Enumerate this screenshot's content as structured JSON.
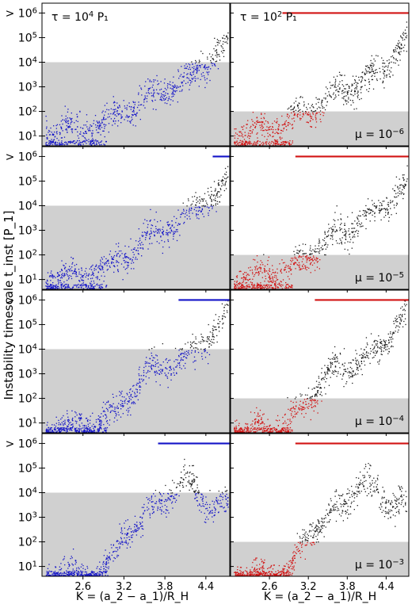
{
  "figure": {
    "ylabel": "Instability timescale t_inst [P_1]",
    "xlabel": "K = (a_2 − a_1)/R_H",
    "column_titles": [
      "τ = 10^4 P_1",
      "τ = 10^2 P_1"
    ],
    "row_labels": [
      "μ = 10^−6",
      "μ = 10^−5",
      "μ = 10^−4",
      "μ = 10^−3"
    ],
    "yticks": [
      "10^1",
      "10^2",
      "10^3",
      "10^4",
      "10^5",
      "> 10^6"
    ],
    "xticks": [
      "2.6",
      "3.2",
      "3.8",
      "4.4"
    ],
    "colors": {
      "blue": "#1414c8",
      "red": "#d21414",
      "black": "#202020",
      "shade": "#d0d0d0"
    }
  },
  "chart_data": [
    {
      "type": "scatter",
      "row": 1,
      "col": 1,
      "mu": "10^-6",
      "tau": "10^4 P1",
      "xlim": [
        2.0,
        4.75
      ],
      "ylim_log10": [
        0.6,
        6.4
      ],
      "shade_below": 10000,
      "mark_threshold": 10000,
      "trend": [
        [
          2.1,
          1.2
        ],
        [
          2.6,
          1.3
        ],
        [
          2.9,
          1.5
        ],
        [
          3.2,
          2.0
        ],
        [
          3.5,
          2.5
        ],
        [
          3.8,
          3.0
        ],
        [
          4.1,
          3.2
        ],
        [
          4.4,
          4.0
        ],
        [
          4.7,
          4.8
        ]
      ],
      "saturated_from": null
    },
    {
      "type": "scatter",
      "row": 1,
      "col": 2,
      "mu": "10^-6",
      "tau": "10^2 P1",
      "xlim": [
        2.0,
        4.75
      ],
      "ylim_log10": [
        0.6,
        6.4
      ],
      "shade_below": 100,
      "mark_threshold": 100,
      "trend": [
        [
          2.1,
          1.2
        ],
        [
          2.6,
          1.3
        ],
        [
          2.9,
          1.6
        ],
        [
          3.2,
          2.0
        ],
        [
          3.5,
          2.5
        ],
        [
          3.8,
          3.0
        ],
        [
          4.1,
          3.2
        ],
        [
          4.4,
          4.0
        ],
        [
          4.7,
          4.8
        ]
      ],
      "saturated_from": 2.8
    },
    {
      "type": "scatter",
      "row": 2,
      "col": 1,
      "mu": "10^-5",
      "tau": "10^4 P1",
      "xlim": [
        2.0,
        4.75
      ],
      "ylim_log10": [
        0.6,
        6.4
      ],
      "shade_below": 10000,
      "mark_threshold": 10000,
      "trend": [
        [
          2.1,
          1.1
        ],
        [
          2.6,
          1.2
        ],
        [
          2.9,
          1.4
        ],
        [
          3.2,
          2.0
        ],
        [
          3.5,
          2.6
        ],
        [
          3.8,
          3.1
        ],
        [
          4.1,
          3.5
        ],
        [
          4.4,
          4.2
        ],
        [
          4.7,
          4.8
        ]
      ],
      "saturated_from": 4.5
    },
    {
      "type": "scatter",
      "row": 2,
      "col": 2,
      "mu": "10^-5",
      "tau": "10^2 P1",
      "xlim": [
        2.0,
        4.75
      ],
      "ylim_log10": [
        0.6,
        6.4
      ],
      "shade_below": 100,
      "mark_threshold": 100,
      "trend": [
        [
          2.1,
          1.1
        ],
        [
          2.6,
          1.2
        ],
        [
          2.9,
          1.4
        ],
        [
          3.2,
          2.0
        ],
        [
          3.5,
          2.6
        ],
        [
          3.8,
          3.1
        ],
        [
          4.1,
          3.5
        ],
        [
          4.4,
          4.2
        ],
        [
          4.7,
          4.8
        ]
      ],
      "saturated_from": 3.0
    },
    {
      "type": "scatter",
      "row": 3,
      "col": 1,
      "mu": "10^-4",
      "tau": "10^4 P1",
      "xlim": [
        2.0,
        4.75
      ],
      "ylim_log10": [
        0.6,
        6.4
      ],
      "shade_below": 10000,
      "mark_threshold": 10000,
      "trend": [
        [
          2.1,
          0.8
        ],
        [
          2.6,
          0.9
        ],
        [
          2.9,
          1.1
        ],
        [
          3.1,
          1.5
        ],
        [
          3.3,
          2.3
        ],
        [
          3.6,
          3.2
        ],
        [
          3.9,
          3.4
        ],
        [
          4.2,
          3.8
        ],
        [
          4.5,
          4.8
        ],
        [
          4.75,
          5.6
        ]
      ],
      "saturated_from": 4.0
    },
    {
      "type": "scatter",
      "row": 3,
      "col": 2,
      "mu": "10^-4",
      "tau": "10^2 P1",
      "xlim": [
        2.0,
        4.75
      ],
      "ylim_log10": [
        0.6,
        6.4
      ],
      "shade_below": 100,
      "mark_threshold": 100,
      "trend": [
        [
          2.1,
          0.8
        ],
        [
          2.6,
          0.9
        ],
        [
          2.9,
          1.1
        ],
        [
          3.1,
          1.5
        ],
        [
          3.3,
          2.3
        ],
        [
          3.6,
          3.2
        ],
        [
          3.9,
          3.4
        ],
        [
          4.2,
          3.8
        ],
        [
          4.5,
          4.8
        ],
        [
          4.75,
          5.6
        ]
      ],
      "saturated_from": 3.3
    },
    {
      "type": "scatter",
      "row": 4,
      "col": 1,
      "mu": "10^-3",
      "tau": "10^4 P1",
      "xlim": [
        2.0,
        4.75
      ],
      "ylim_log10": [
        0.6,
        6.4
      ],
      "shade_below": 10000,
      "mark_threshold": 10000,
      "trend": [
        [
          2.1,
          0.7
        ],
        [
          2.6,
          0.7
        ],
        [
          2.9,
          0.8
        ],
        [
          3.0,
          1.2
        ],
        [
          3.2,
          2.4
        ],
        [
          3.5,
          3.0
        ],
        [
          3.8,
          3.8
        ],
        [
          4.1,
          4.5
        ],
        [
          4.4,
          3.6
        ],
        [
          4.75,
          3.5
        ]
      ],
      "saturated_from": 3.7
    },
    {
      "type": "scatter",
      "row": 4,
      "col": 2,
      "mu": "10^-3",
      "tau": "10^2 P1",
      "xlim": [
        2.0,
        4.75
      ],
      "ylim_log10": [
        0.6,
        6.4
      ],
      "shade_below": 100,
      "mark_threshold": 100,
      "trend": [
        [
          2.1,
          0.7
        ],
        [
          2.6,
          0.7
        ],
        [
          2.9,
          0.8
        ],
        [
          3.0,
          1.2
        ],
        [
          3.2,
          2.4
        ],
        [
          3.5,
          3.0
        ],
        [
          3.8,
          3.8
        ],
        [
          4.1,
          4.5
        ],
        [
          4.4,
          3.6
        ],
        [
          4.75,
          3.5
        ]
      ],
      "saturated_from": 3.0
    }
  ]
}
